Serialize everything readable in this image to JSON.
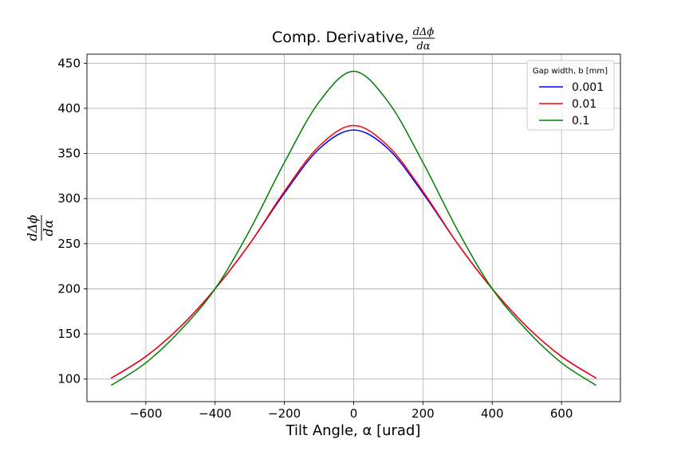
{
  "chart_data": {
    "type": "line",
    "title": "Comp. Derivative, ",
    "title_math": {
      "numerator": "dΔϕ",
      "denominator": "dα"
    },
    "xlabel": "Tilt Angle, α [urad]",
    "ylabel_math": {
      "numerator": "dΔϕ",
      "denominator": "dα"
    },
    "xlim": [
      -770,
      770
    ],
    "ylim": [
      75,
      460
    ],
    "x_ticks": [
      -600,
      -400,
      -200,
      0,
      200,
      400,
      600
    ],
    "x_tick_labels": [
      "−600",
      "−400",
      "−200",
      "0",
      "200",
      "400",
      "600"
    ],
    "y_ticks": [
      100,
      150,
      200,
      250,
      300,
      350,
      400,
      450
    ],
    "y_tick_labels": [
      "100",
      "150",
      "200",
      "250",
      "300",
      "350",
      "400",
      "450"
    ],
    "grid": true,
    "legend": {
      "title": "Gap width, b  [mm]",
      "placement": "upper-right"
    },
    "x": [
      -700,
      -600,
      -500,
      -400,
      -300,
      -200,
      -100,
      0,
      100,
      200,
      300,
      400,
      500,
      600,
      700
    ],
    "series": [
      {
        "name": "0.001",
        "color": "#0000ff",
        "values": [
          101,
          125,
          158,
          200,
          250,
          306,
          355,
          376,
          355,
          306,
          250,
          200,
          158,
          125,
          101
        ]
      },
      {
        "name": "0.01",
        "color": "#ff0000",
        "values": [
          101,
          125,
          158,
          200,
          250,
          308,
          358,
          381,
          358,
          308,
          250,
          200,
          158,
          125,
          101
        ]
      },
      {
        "name": "0.1",
        "color": "#008000",
        "values": [
          93,
          118,
          154,
          200,
          265,
          340,
          407,
          441,
          407,
          340,
          265,
          200,
          154,
          118,
          93
        ]
      }
    ]
  }
}
